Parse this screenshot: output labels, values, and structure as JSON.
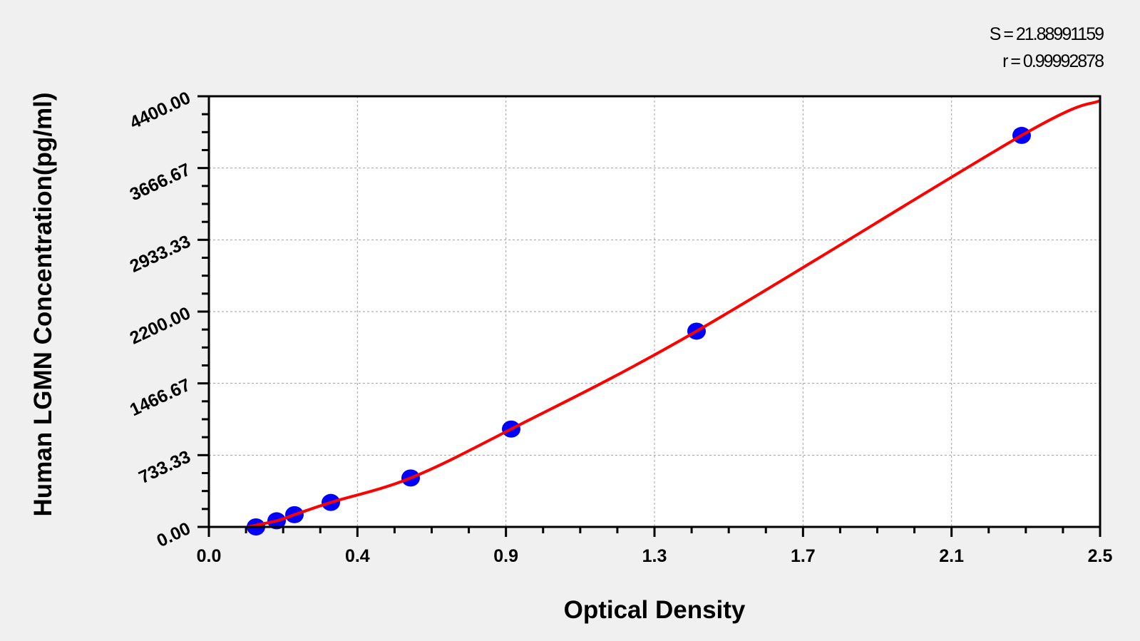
{
  "chart_data": {
    "type": "scatter",
    "xlabel": "Optical Density",
    "ylabel": "Human LGMN Concentration(pg/ml)",
    "xlim": [
      0,
      2.5
    ],
    "ylim": [
      0,
      4400
    ],
    "x_tick_labels": [
      "0.0",
      "0.4",
      "0.9",
      "1.3",
      "1.7",
      "2.1",
      "2.5"
    ],
    "y_tick_labels": [
      "0.00",
      "733.33",
      "1466.67",
      "2200.00",
      "2933.33",
      "3666.67",
      "4400.00"
    ],
    "grid": true,
    "points": [
      {
        "x": 0.132,
        "y": 0
      },
      {
        "x": 0.19,
        "y": 62.5
      },
      {
        "x": 0.24,
        "y": 125
      },
      {
        "x": 0.342,
        "y": 250
      },
      {
        "x": 0.566,
        "y": 500
      },
      {
        "x": 0.848,
        "y": 1000
      },
      {
        "x": 1.368,
        "y": 2000
      },
      {
        "x": 2.28,
        "y": 4000
      }
    ],
    "fit_curve": [
      [
        0.108,
        0
      ],
      [
        0.19,
        62.5
      ],
      [
        0.24,
        125
      ],
      [
        0.342,
        250
      ],
      [
        0.566,
        500
      ],
      [
        0.848,
        1000
      ],
      [
        1.368,
        2000
      ],
      [
        2.28,
        4000
      ],
      [
        2.5,
        4356
      ]
    ],
    "stats": {
      "s": "S = 21.88991159",
      "r": "r = 0.99992878"
    },
    "colors": {
      "points": "#0000ff",
      "curve": "#ff0000",
      "background": "#f0f0f0",
      "plot_area": "#ffffff"
    }
  }
}
